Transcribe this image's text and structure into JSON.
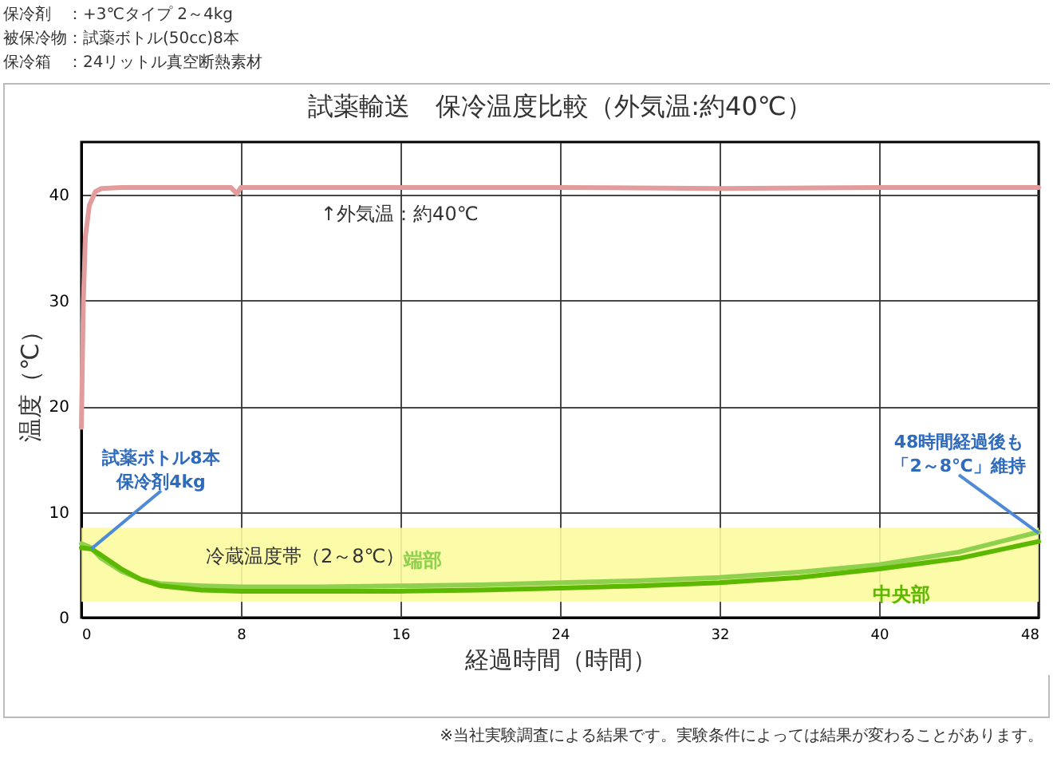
{
  "chart_data": {
    "type": "line",
    "title": "試薬輸送　保冷温度比較（外気温:約40℃）",
    "xlabel": "経過時間（時間）",
    "ylabel": "温度（℃）",
    "xlim": [
      0,
      48
    ],
    "xticks": [
      0,
      8,
      16,
      24,
      32,
      40,
      48
    ],
    "ylim": [
      0,
      45
    ],
    "yticks": [
      0,
      10,
      20,
      30,
      40
    ],
    "grid": true,
    "legend": false,
    "series": [
      {
        "color": "#e39c9c",
        "x": [
          0,
          0.1,
          0.2,
          0.4,
          0.7,
          1,
          2,
          7.5,
          7.8,
          8,
          16,
          24,
          32,
          40,
          48
        ],
        "values": [
          18,
          30,
          36,
          39,
          40.3,
          40.6,
          40.7,
          40.7,
          40.1,
          40.7,
          40.7,
          40.7,
          40.6,
          40.7,
          40.7
        ]
      },
      {
        "name": "端部",
        "color": "#8fd14f",
        "x": [
          0,
          0.5,
          1,
          2,
          3,
          4,
          6,
          8,
          12,
          16,
          20,
          24,
          28,
          32,
          36,
          40,
          44,
          48
        ],
        "values": [
          7,
          6.6,
          5.6,
          4.4,
          3.6,
          3.2,
          3.0,
          2.9,
          2.9,
          3.0,
          3.1,
          3.3,
          3.5,
          3.8,
          4.3,
          5.0,
          6.2,
          8.1
        ]
      },
      {
        "name": "中央部",
        "color": "#5cb800",
        "x": [
          0,
          0.5,
          1,
          2,
          3,
          4,
          6,
          8,
          12,
          16,
          20,
          24,
          28,
          32,
          36,
          40,
          44,
          48
        ],
        "values": [
          6.6,
          6.5,
          5.9,
          4.6,
          3.6,
          3.0,
          2.6,
          2.5,
          2.5,
          2.5,
          2.6,
          2.8,
          3.0,
          3.3,
          3.8,
          4.6,
          5.6,
          7.2
        ]
      }
    ],
    "bands": [
      {
        "axis": "y",
        "from": 1.5,
        "to": 8.5,
        "label": "冷蔵温度帯（2～8℃）",
        "color": "#fbfb9e"
      }
    ],
    "annotations": [
      "保冷剤　：+3℃タイプ 2～4kg",
      "被保冷物：試薬ボトル(50cc)8本",
      "保冷箱　：24リットル真空断熱素材",
      {
        "text": "試薬ボトル8本保冷剤4kg",
        "x": 0.5,
        "y": 6.5
      },
      "↑外気温：約40℃",
      {
        "text": "48時間経過後も「2～8℃」維持",
        "x": 48,
        "y": 8
      },
      "※当社実験調査による結果です。実験条件によっては結果が変わることがあります。"
    ]
  }
}
